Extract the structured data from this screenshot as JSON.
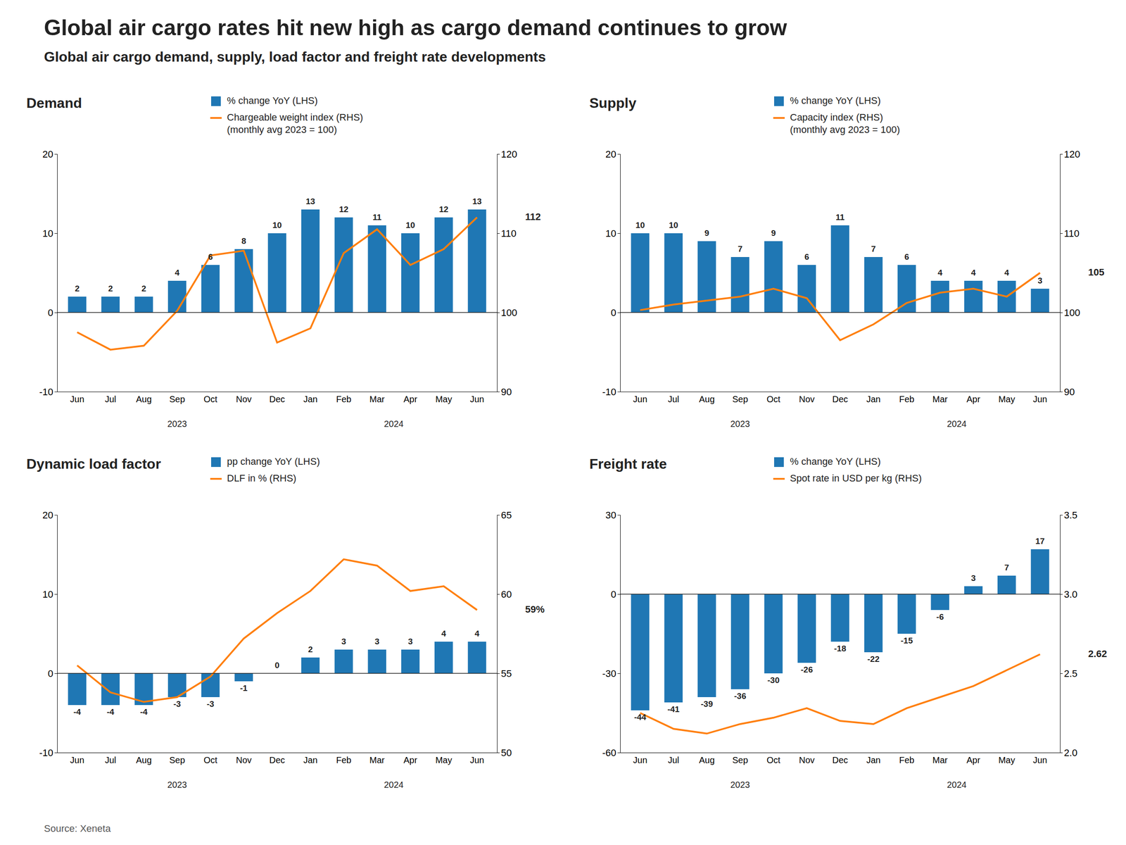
{
  "title": "Global air cargo rates hit new high as cargo demand continues to grow",
  "subtitle": "Global air cargo demand, supply, load factor and freight rate developments",
  "source": "Source: Xeneta",
  "chart_data": [
    {
      "type": "bar",
      "title": "Demand",
      "categories": [
        "Jun",
        "Jul",
        "Aug",
        "Sep",
        "Oct",
        "Nov",
        "Dec",
        "Jan",
        "Feb",
        "Mar",
        "Apr",
        "May",
        "Jun"
      ],
      "x_groups": [
        {
          "label": "2023",
          "size": 7
        },
        {
          "label": "2024",
          "size": 6
        }
      ],
      "series": [
        {
          "name": "% change YoY (LHS)",
          "type": "bar",
          "data_labels": true,
          "values": [
            2,
            2,
            2,
            4,
            6,
            8,
            10,
            13,
            12,
            11,
            10,
            12,
            13
          ]
        },
        {
          "name": "Chargeable weight index (RHS)\n(monthly avg 2023 = 100)",
          "type": "line",
          "axis": "y2",
          "line_style": "solid",
          "values": [
            97.5,
            95.3,
            95.8,
            100.2,
            107.2,
            107.8,
            96.2,
            98.0,
            107.5,
            110.5,
            106.0,
            108.0,
            112.0
          ]
        }
      ],
      "ylim": [
        -10,
        20
      ],
      "yticks": [
        -10,
        0,
        10,
        20
      ],
      "y2lim": [
        90,
        120
      ],
      "y2ticks": [
        90,
        100,
        110,
        120
      ],
      "annotations": [
        {
          "text": "112",
          "y": 112.0,
          "axis": "y2"
        }
      ],
      "legend": "top",
      "grid": false
    },
    {
      "type": "bar",
      "title": "Supply",
      "categories": [
        "Jun",
        "Jul",
        "Aug",
        "Sep",
        "Oct",
        "Nov",
        "Dec",
        "Jan",
        "Feb",
        "Mar",
        "Apr",
        "May",
        "Jun"
      ],
      "x_groups": [
        {
          "label": "2023",
          "size": 7
        },
        {
          "label": "2024",
          "size": 6
        }
      ],
      "series": [
        {
          "name": "% change YoY (LHS)",
          "type": "bar",
          "data_labels": true,
          "values": [
            10,
            10,
            9,
            7,
            9,
            6,
            11,
            7,
            6,
            4,
            4,
            4,
            3
          ]
        },
        {
          "name": "Capacity index (RHS)\n(monthly avg 2023 = 100)",
          "type": "line",
          "axis": "y2",
          "line_style": "solid",
          "values": [
            100.3,
            101.0,
            101.5,
            102.0,
            103.0,
            101.8,
            96.5,
            98.5,
            101.2,
            102.5,
            103.0,
            102.0,
            105.0
          ]
        }
      ],
      "ylim": [
        -10,
        20
      ],
      "yticks": [
        -10,
        0,
        10,
        20
      ],
      "y2lim": [
        90,
        120
      ],
      "y2ticks": [
        90,
        100,
        110,
        120
      ],
      "annotations": [
        {
          "text": "105",
          "y": 105.0,
          "axis": "y2"
        }
      ],
      "legend": "top",
      "grid": false
    },
    {
      "type": "bar",
      "title": "Dynamic load factor",
      "categories": [
        "Jun",
        "Jul",
        "Aug",
        "Sep",
        "Oct",
        "Nov",
        "Dec",
        "Jan",
        "Feb",
        "Mar",
        "Apr",
        "May",
        "Jun"
      ],
      "x_groups": [
        {
          "label": "2023",
          "size": 7
        },
        {
          "label": "2024",
          "size": 6
        }
      ],
      "series": [
        {
          "name": "pp change YoY (LHS)",
          "type": "bar",
          "data_labels": true,
          "values": [
            -4,
            -4,
            -4,
            -3,
            -3,
            -1,
            0,
            2,
            3,
            3,
            3,
            4,
            4
          ]
        },
        {
          "name": "DLF in % (RHS)",
          "type": "line",
          "axis": "y2",
          "line_style": "solid",
          "values": [
            55.5,
            53.8,
            53.2,
            53.5,
            54.8,
            57.2,
            58.8,
            60.2,
            62.2,
            61.8,
            60.2,
            60.5,
            59.0
          ]
        }
      ],
      "ylim": [
        -10,
        20
      ],
      "yticks": [
        -10,
        0,
        10,
        20
      ],
      "y2lim": [
        50,
        65
      ],
      "y2ticks": [
        50,
        55,
        60,
        65
      ],
      "annotations": [
        {
          "text": "59%",
          "y": 59.0,
          "axis": "y2"
        }
      ],
      "legend": "top",
      "grid": false
    },
    {
      "type": "bar",
      "title": "Freight rate",
      "categories": [
        "Jun",
        "Jul",
        "Aug",
        "Sep",
        "Oct",
        "Nov",
        "Dec",
        "Jan",
        "Feb",
        "Mar",
        "Apr",
        "May",
        "Jun"
      ],
      "x_groups": [
        {
          "label": "2023",
          "size": 7
        },
        {
          "label": "2024",
          "size": 6
        }
      ],
      "series": [
        {
          "name": "% change YoY (LHS)",
          "type": "bar",
          "data_labels": true,
          "values": [
            -44,
            -41,
            -39,
            -36,
            -30,
            -26,
            -18,
            -22,
            -15,
            -6,
            3,
            7,
            17
          ]
        },
        {
          "name": "Spot rate in USD per kg (RHS)",
          "type": "line",
          "axis": "y2",
          "line_style": "solid",
          "values": [
            2.25,
            2.15,
            2.12,
            2.18,
            2.22,
            2.28,
            2.2,
            2.18,
            2.28,
            2.35,
            2.42,
            2.52,
            2.62
          ]
        }
      ],
      "ylim": [
        -60,
        30
      ],
      "yticks": [
        -60,
        -30,
        0,
        30
      ],
      "y2lim": [
        2.0,
        3.5
      ],
      "y2ticks": [
        {
          "value": 2.0,
          "label": "2.0"
        },
        2.5,
        {
          "value": 3.0,
          "label": "3.0"
        },
        3.5
      ],
      "annotations": [
        {
          "text": "2.62",
          "y": 2.62,
          "axis": "y2"
        }
      ],
      "legend": "top",
      "grid": false
    }
  ]
}
